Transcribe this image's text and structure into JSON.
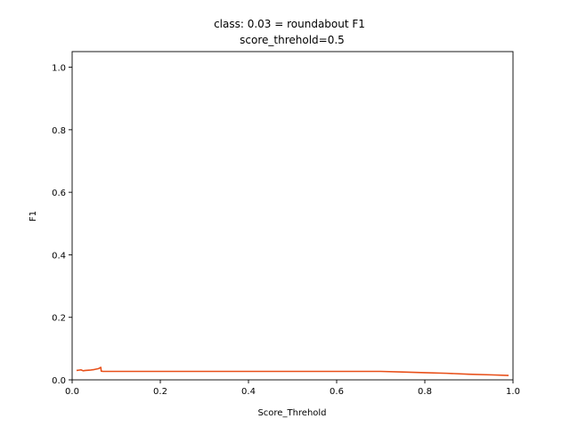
{
  "chart_data": {
    "type": "line",
    "title": "class: 0.03 = roundabout F1",
    "subtitle": "score_threhold=0.5",
    "xlabel": "Score_Threhold",
    "ylabel": "F1",
    "xlim": [
      0.0,
      1.0
    ],
    "ylim": [
      0.0,
      1.05
    ],
    "xticks": [
      0.0,
      0.2,
      0.4,
      0.6,
      0.8,
      1.0
    ],
    "xtick_labels": [
      "0.0",
      "0.2",
      "0.4",
      "0.6",
      "0.8",
      "1.0"
    ],
    "yticks": [
      0.0,
      0.2,
      0.4,
      0.6,
      0.8,
      1.0
    ],
    "ytick_labels": [
      "0.0",
      "0.2",
      "0.4",
      "0.6",
      "0.8",
      "1.0"
    ],
    "grid": false,
    "legend": "none",
    "series": [
      {
        "color": "#e8501a",
        "x": [
          0.01,
          0.015,
          0.02,
          0.025,
          0.03,
          0.04,
          0.05,
          0.06,
          0.065,
          0.066,
          0.07,
          0.1,
          0.2,
          0.3,
          0.4,
          0.5,
          0.6,
          0.7,
          0.75,
          0.8,
          0.85,
          0.9,
          0.95,
          0.99
        ],
        "y": [
          0.03,
          0.031,
          0.032,
          0.029,
          0.03,
          0.031,
          0.033,
          0.036,
          0.04,
          0.028,
          0.027,
          0.027,
          0.027,
          0.027,
          0.027,
          0.027,
          0.027,
          0.027,
          0.025,
          0.023,
          0.021,
          0.018,
          0.016,
          0.014
        ]
      }
    ]
  }
}
